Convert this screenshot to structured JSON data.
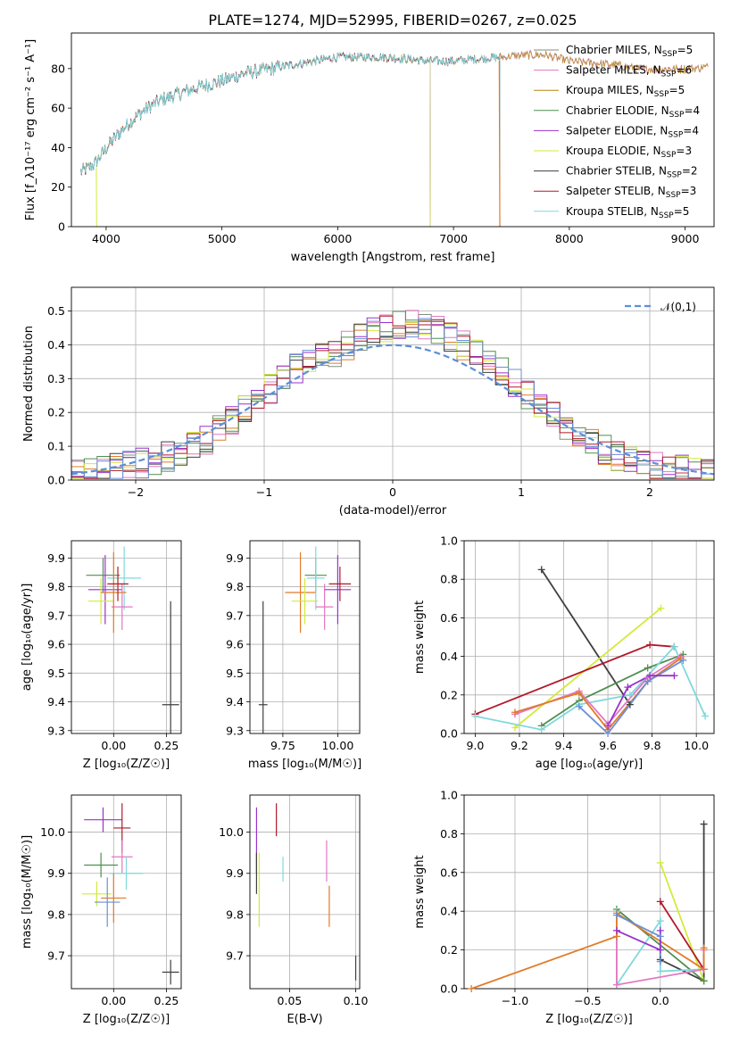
{
  "figure_title": "PLATE=1274, MJD=52995, FIBERID=0267, z=0.025",
  "colors": {
    "chabrier_miles": "#7f8f7f",
    "salpeter_miles": "#e377c2",
    "kroupa_miles": "#b8860b",
    "chabrier_elodie": "#4f8f4f",
    "salpeter_elodie": "#9932cc",
    "kroupa_elodie": "#d4ea3a",
    "chabrier_stelib": "#3f3f3f",
    "salpeter_stelib": "#b2182b",
    "kroupa_stelib": "#80d8dc",
    "miles_orange": "#e07b28",
    "miles_blue": "#6a8fd8",
    "gaussian": "#5b8fd8"
  },
  "chart_data": [
    {
      "id": "spectrum",
      "type": "line",
      "xlabel": "wavelength [Angstrom, rest frame]",
      "ylabel": "Flux [f_λ10⁻¹⁷ erg cm⁻² s⁻¹ A⁻¹]",
      "xlim": [
        3700,
        9250
      ],
      "ylim": [
        0,
        98
      ],
      "xticks": [
        "4000",
        "5000",
        "6000",
        "7000",
        "8000",
        "9000"
      ],
      "yticks": [
        "0",
        "20",
        "40",
        "60",
        "80"
      ],
      "continuum": {
        "x": [
          3780,
          3900,
          4000,
          4100,
          4200,
          4300,
          4400,
          4500,
          4600,
          4800,
          5000,
          5200,
          5400,
          5600,
          5800,
          6000,
          6200,
          6400,
          6600,
          6800,
          7000,
          7200,
          7400,
          7600,
          7800,
          8000,
          8200,
          8400,
          8600,
          8800,
          9000,
          9200
        ],
        "y": [
          28,
          32,
          40,
          47,
          53,
          58,
          62,
          65,
          67,
          71,
          74,
          78,
          80,
          82,
          84,
          86,
          86,
          86,
          85,
          84,
          84,
          85,
          86,
          87,
          87,
          84,
          83,
          82,
          80,
          80,
          80,
          81
        ]
      },
      "series_ranges": [
        {
          "name": "Chabrier MILES, N_SSP=5",
          "x_end": 9200
        },
        {
          "name": "Salpeter MILES, N_SSP=6",
          "x_end": 9200
        },
        {
          "name": "Kroupa MILES, N_SSP=5",
          "x_end": 9200
        },
        {
          "name": "Chabrier ELODIE, N_SSP=4",
          "x_end": 6800
        },
        {
          "name": "Salpeter ELODIE, N_SSP=4",
          "x_end": 6800
        },
        {
          "name": "Kroupa ELODIE, N_SSP=3",
          "x_end": 6800
        },
        {
          "name": "Chabrier STELIB, N_SSP=2",
          "x_end": 7400
        },
        {
          "name": "Salpeter STELIB, N_SSP=3",
          "x_end": 7400
        },
        {
          "name": "Kroupa STELIB, N_SSP=5",
          "x_end": 7400
        }
      ],
      "legend": [
        {
          "label": "Chabrier MILES, N",
          "sub": "SSP",
          "suffix": "=5",
          "color_key": "chabrier_miles"
        },
        {
          "label": "Salpeter MILES, N",
          "sub": "SSP",
          "suffix": "=6",
          "color_key": "salpeter_miles"
        },
        {
          "label": "Kroupa MILES, N",
          "sub": "SSP",
          "suffix": "=5",
          "color_key": "kroupa_miles"
        },
        {
          "label": "Chabrier ELODIE, N",
          "sub": "SSP",
          "suffix": "=4",
          "color_key": "chabrier_elodie"
        },
        {
          "label": "Salpeter ELODIE, N",
          "sub": "SSP",
          "suffix": "=4",
          "color_key": "salpeter_elodie"
        },
        {
          "label": "Kroupa ELODIE, N",
          "sub": "SSP",
          "suffix": "=3",
          "color_key": "kroupa_elodie"
        },
        {
          "label": "Chabrier STELIB, N",
          "sub": "SSP",
          "suffix": "=2",
          "color_key": "chabrier_stelib"
        },
        {
          "label": "Salpeter STELIB, N",
          "sub": "SSP",
          "suffix": "=3",
          "color_key": "salpeter_stelib"
        },
        {
          "label": "Kroupa STELIB, N",
          "sub": "SSP",
          "suffix": "=5",
          "color_key": "kroupa_stelib"
        }
      ]
    },
    {
      "id": "residuals",
      "type": "area",
      "xlabel": "(data-model)/error",
      "ylabel": "Normed distribution",
      "xlim": [
        -2.5,
        2.5
      ],
      "ylim": [
        0,
        0.57
      ],
      "xticks": [
        "−2",
        "−1",
        "0",
        "1",
        "2"
      ],
      "yticks": [
        "0.0",
        "0.1",
        "0.2",
        "0.3",
        "0.4",
        "0.5"
      ],
      "bin_width": 0.1,
      "bins_start": -2.5,
      "base_hist": [
        0.02,
        0.03,
        0.03,
        0.04,
        0.05,
        0.05,
        0.06,
        0.07,
        0.08,
        0.1,
        0.12,
        0.15,
        0.18,
        0.21,
        0.24,
        0.27,
        0.3,
        0.33,
        0.35,
        0.37,
        0.38,
        0.4,
        0.42,
        0.44,
        0.45,
        0.46,
        0.46,
        0.45,
        0.44,
        0.42,
        0.4,
        0.37,
        0.35,
        0.32,
        0.29,
        0.25,
        0.22,
        0.19,
        0.16,
        0.13,
        0.11,
        0.09,
        0.07,
        0.06,
        0.05,
        0.04,
        0.03,
        0.03,
        0.02,
        0.02
      ],
      "gaussian_label": "𝒩(0,1)"
    },
    {
      "id": "age_vs_z",
      "type": "scatter",
      "xlabel": "Z [log₁₀(Z/Z☉)]",
      "ylabel": "age  [log₁₀(age/yr)]",
      "xlim": [
        -0.2,
        0.32
      ],
      "ylim": [
        9.29,
        9.96
      ],
      "xticks": [
        "0.00",
        "0.25"
      ],
      "yticks": [
        "9.3",
        "9.4",
        "9.5",
        "9.6",
        "9.7",
        "9.8",
        "9.9"
      ],
      "points": [
        {
          "x": -0.05,
          "y": 9.84,
          "xerr": 0.08,
          "yerr": 0.06,
          "color_key": "chabrier_elodie"
        },
        {
          "x": -0.04,
          "y": 9.79,
          "xerr": 0.08,
          "yerr": 0.12,
          "color_key": "salpeter_elodie"
        },
        {
          "x": -0.06,
          "y": 9.75,
          "xerr": 0.06,
          "yerr": 0.08,
          "color_key": "kroupa_elodie"
        },
        {
          "x": 0.05,
          "y": 9.83,
          "xerr": 0.08,
          "yerr": 0.11,
          "color_key": "kroupa_stelib"
        },
        {
          "x": 0.04,
          "y": 9.73,
          "xerr": 0.05,
          "yerr": 0.08,
          "color_key": "salpeter_miles"
        },
        {
          "x": 0.0,
          "y": 9.78,
          "xerr": 0.06,
          "yerr": 0.14,
          "color_key": "miles_orange"
        },
        {
          "x": 0.02,
          "y": 9.81,
          "xerr": 0.05,
          "yerr": 0.06,
          "color_key": "salpeter_stelib"
        },
        {
          "x": 0.27,
          "y": 9.39,
          "xerr": 0.04,
          "yerr": 0.36,
          "color_key": "chabrier_stelib"
        }
      ]
    },
    {
      "id": "age_vs_mass",
      "type": "scatter",
      "xlabel": "mass [log₁₀(M/M☉)]",
      "ylabel": "",
      "xlim": [
        9.6,
        10.1
      ],
      "ylim": [
        9.29,
        9.96
      ],
      "xticks": [
        "9.75",
        "10.00"
      ],
      "yticks": [
        "9.3",
        "9.4",
        "9.5",
        "9.6",
        "9.7",
        "9.8",
        "9.9"
      ],
      "points": [
        {
          "x": 9.66,
          "y": 9.39,
          "xerr": 0.02,
          "yerr": 0.36,
          "color_key": "chabrier_stelib"
        },
        {
          "x": 9.83,
          "y": 9.78,
          "xerr": 0.07,
          "yerr": 0.14,
          "color_key": "miles_orange"
        },
        {
          "x": 9.9,
          "y": 9.84,
          "xerr": 0.05,
          "yerr": 0.06,
          "color_key": "chabrier_elodie"
        },
        {
          "x": 9.85,
          "y": 9.75,
          "xerr": 0.06,
          "yerr": 0.08,
          "color_key": "kroupa_elodie"
        },
        {
          "x": 9.9,
          "y": 9.83,
          "xerr": 0.04,
          "yerr": 0.11,
          "color_key": "kroupa_stelib"
        },
        {
          "x": 9.94,
          "y": 9.73,
          "xerr": 0.04,
          "yerr": 0.08,
          "color_key": "salpeter_miles"
        },
        {
          "x": 10.0,
          "y": 9.79,
          "xerr": 0.06,
          "yerr": 0.12,
          "color_key": "salpeter_elodie"
        },
        {
          "x": 10.01,
          "y": 9.81,
          "xerr": 0.05,
          "yerr": 0.06,
          "color_key": "salpeter_stelib"
        }
      ]
    },
    {
      "id": "weight_vs_age",
      "type": "line",
      "xlabel": "age  [log₁₀(age/yr)]",
      "ylabel": "mass weight",
      "xlim": [
        8.95,
        10.08
      ],
      "ylim": [
        0,
        1.0
      ],
      "xticks": [
        "9.0",
        "9.2",
        "9.4",
        "9.6",
        "9.8",
        "10.0"
      ],
      "yticks": [
        "0.0",
        "0.2",
        "0.4",
        "0.6",
        "0.8",
        "1.0"
      ],
      "series": [
        {
          "name": "Chabrier STELIB",
          "color_key": "chabrier_stelib",
          "x": [
            9.3,
            9.7
          ],
          "y": [
            0.85,
            0.15
          ]
        },
        {
          "name": "Kroupa ELODIE",
          "color_key": "kroupa_elodie",
          "x": [
            9.18,
            9.84
          ],
          "y": [
            0.03,
            0.65
          ]
        },
        {
          "name": "Salpeter STELIB",
          "color_key": "salpeter_stelib",
          "x": [
            9.0,
            9.79,
            9.9
          ],
          "y": [
            0.1,
            0.46,
            0.45
          ]
        },
        {
          "name": "Chabrier ELODIE",
          "color_key": "chabrier_elodie",
          "x": [
            9.3,
            9.47,
            9.78,
            9.94
          ],
          "y": [
            0.04,
            0.17,
            0.34,
            0.41
          ]
        },
        {
          "name": "Kroupa STELIB",
          "color_key": "kroupa_stelib",
          "x": [
            9.0,
            9.3,
            9.47,
            9.7,
            9.9,
            10.04
          ],
          "y": [
            0.09,
            0.02,
            0.15,
            0.2,
            0.45,
            0.09
          ]
        },
        {
          "name": "Salpeter MILES",
          "color_key": "salpeter_miles",
          "x": [
            9.18,
            9.47,
            9.6,
            9.78,
            9.93
          ],
          "y": [
            0.1,
            0.22,
            0.05,
            0.29,
            0.4
          ]
        },
        {
          "name": "Kroupa MILES",
          "color_key": "miles_orange",
          "x": [
            9.18,
            9.47,
            9.6,
            9.78,
            9.93
          ],
          "y": [
            0.11,
            0.21,
            0.02,
            0.27,
            0.39
          ]
        },
        {
          "name": "Chabrier MILES",
          "color_key": "miles_blue",
          "x": [
            9.47,
            9.6,
            9.78,
            9.94
          ],
          "y": [
            0.14,
            0.0,
            0.27,
            0.38
          ]
        },
        {
          "name": "Salpeter ELODIE",
          "color_key": "salpeter_elodie",
          "x": [
            9.6,
            9.69,
            9.79,
            9.9
          ],
          "y": [
            0.04,
            0.24,
            0.3,
            0.3
          ]
        }
      ]
    },
    {
      "id": "mass_vs_z",
      "type": "scatter",
      "xlabel": "Z [log₁₀(Z/Z☉)]",
      "ylabel": "mass [log₁₀(M/M☉)]",
      "xlim": [
        -0.2,
        0.32
      ],
      "ylim": [
        9.62,
        10.09
      ],
      "xticks": [
        "0.00",
        "0.25"
      ],
      "yticks": [
        "9.7",
        "9.8",
        "9.9",
        "10.0"
      ],
      "points": [
        {
          "x": -0.05,
          "y": 10.03,
          "xerr": 0.09,
          "yerr": 0.03,
          "color_key": "salpeter_elodie"
        },
        {
          "x": 0.04,
          "y": 10.01,
          "xerr": 0.04,
          "yerr": 0.06,
          "color_key": "salpeter_stelib"
        },
        {
          "x": 0.04,
          "y": 9.94,
          "xerr": 0.05,
          "yerr": 0.04,
          "color_key": "salpeter_miles"
        },
        {
          "x": -0.06,
          "y": 9.92,
          "xerr": 0.08,
          "yerr": 0.03,
          "color_key": "chabrier_elodie"
        },
        {
          "x": 0.06,
          "y": 9.9,
          "xerr": 0.08,
          "yerr": 0.04,
          "color_key": "kroupa_stelib"
        },
        {
          "x": -0.08,
          "y": 9.85,
          "xerr": 0.07,
          "yerr": 0.03,
          "color_key": "kroupa_elodie"
        },
        {
          "x": 0.0,
          "y": 9.84,
          "xerr": 0.06,
          "yerr": 0.06,
          "color_key": "miles_orange"
        },
        {
          "x": -0.03,
          "y": 9.83,
          "xerr": 0.06,
          "yerr": 0.06,
          "color_key": "miles_blue"
        },
        {
          "x": 0.27,
          "y": 9.66,
          "xerr": 0.04,
          "yerr": 0.03,
          "color_key": "chabrier_stelib"
        }
      ]
    },
    {
      "id": "mass_vs_ebv",
      "type": "scatter",
      "xlabel": "E(B-V)",
      "ylabel": "",
      "xlim": [
        0.02,
        0.103
      ],
      "ylim": [
        9.62,
        10.09
      ],
      "xticks": [
        "0.05",
        "0.10"
      ],
      "yticks": [
        "9.7",
        "9.8",
        "9.9",
        "10.0"
      ],
      "points": [
        {
          "x": 0.025,
          "y": 9.98,
          "xerr": 0,
          "yerr": 0.08,
          "color_key": "salpeter_elodie"
        },
        {
          "x": 0.025,
          "y": 9.9,
          "xerr": 0,
          "yerr": 0.05,
          "color_key": "chabrier_stelib"
        },
        {
          "x": 0.027,
          "y": 9.86,
          "xerr": 0,
          "yerr": 0.09,
          "color_key": "kroupa_elodie"
        },
        {
          "x": 0.04,
          "y": 10.03,
          "xerr": 0,
          "yerr": 0.04,
          "color_key": "salpeter_stelib"
        },
        {
          "x": 0.045,
          "y": 9.91,
          "xerr": 0,
          "yerr": 0.03,
          "color_key": "kroupa_stelib"
        },
        {
          "x": 0.078,
          "y": 9.93,
          "xerr": 0,
          "yerr": 0.05,
          "color_key": "salpeter_miles"
        },
        {
          "x": 0.08,
          "y": 9.82,
          "xerr": 0,
          "yerr": 0.05,
          "color_key": "miles_orange"
        },
        {
          "x": 0.1,
          "y": 9.67,
          "xerr": 0,
          "yerr": 0.03,
          "color_key": "chabrier_stelib"
        }
      ]
    },
    {
      "id": "weight_vs_z",
      "type": "line",
      "xlabel": "Z [log₁₀(Z/Z☉)]",
      "ylabel": "mass weight",
      "xlim": [
        -1.35,
        0.37
      ],
      "ylim": [
        0,
        1.0
      ],
      "xticks": [
        "−1.0",
        "−0.5",
        "0.0"
      ],
      "yticks": [
        "0.0",
        "0.2",
        "0.4",
        "0.6",
        "0.8",
        "1.0"
      ],
      "series": [
        {
          "name": "Chabrier STELIB",
          "color_key": "chabrier_stelib",
          "x": [
            0.0,
            0.3,
            0.3
          ],
          "y": [
            0.15,
            0.04,
            0.85
          ]
        },
        {
          "name": "Kroupa ELODIE",
          "color_key": "kroupa_elodie",
          "x": [
            0.0,
            0.3
          ],
          "y": [
            0.65,
            0.04
          ]
        },
        {
          "name": "Salpeter STELIB",
          "color_key": "salpeter_stelib",
          "x": [
            0.0,
            0.3,
            0.3
          ],
          "y": [
            0.45,
            0.1,
            0.1
          ]
        },
        {
          "name": "Chabrier ELODIE",
          "color_key": "chabrier_elodie",
          "x": [
            -0.3,
            0.3
          ],
          "y": [
            0.41,
            0.04
          ]
        },
        {
          "name": "Kroupa STELIB",
          "color_key": "kroupa_stelib",
          "x": [
            -0.3,
            -0.3,
            0.0,
            0.0,
            0.3
          ],
          "y": [
            0.4,
            0.02,
            0.35,
            0.09,
            0.1
          ]
        },
        {
          "name": "Salpeter MILES",
          "color_key": "salpeter_miles",
          "x": [
            -0.3,
            -0.3,
            0.3,
            0.3
          ],
          "y": [
            0.3,
            0.02,
            0.1,
            0.2
          ]
        },
        {
          "name": "Kroupa MILES",
          "color_key": "miles_orange",
          "x": [
            -1.3,
            -0.3,
            -0.3,
            0.3,
            0.3
          ],
          "y": [
            0.0,
            0.27,
            0.39,
            0.1,
            0.21
          ]
        },
        {
          "name": "Chabrier MILES",
          "color_key": "miles_blue",
          "x": [
            -0.3,
            0.0,
            0.0
          ],
          "y": [
            0.38,
            0.27,
            0.14
          ]
        },
        {
          "name": "Salpeter ELODIE",
          "color_key": "salpeter_elodie",
          "x": [
            -0.3,
            0.0,
            0.0
          ],
          "y": [
            0.3,
            0.2,
            0.3
          ]
        }
      ]
    }
  ]
}
